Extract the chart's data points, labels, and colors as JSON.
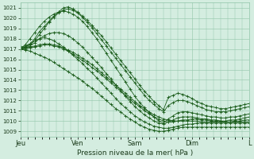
{
  "xlabel": "Pression niveau de la mer( hPa )",
  "ylim": [
    1008.5,
    1021.5
  ],
  "yticks": [
    1009,
    1010,
    1011,
    1012,
    1013,
    1014,
    1015,
    1016,
    1017,
    1018,
    1019,
    1020,
    1021
  ],
  "day_labels": [
    "Jeu",
    "Ven",
    "Sam",
    "Dim",
    "L"
  ],
  "day_positions": [
    0,
    48,
    96,
    144,
    192
  ],
  "line_color": "#1a5c1a",
  "bg_color": "#d4ede0",
  "grid_color": "#90c4a8",
  "total_hours": 192,
  "series": [
    [
      1017.2,
      1017.3,
      1017.5,
      1018.0,
      1018.7,
      1019.2,
      1019.7,
      1020.2,
      1020.6,
      1021.0,
      1021.1,
      1020.9,
      1020.6,
      1020.2,
      1019.8,
      1019.3,
      1018.8,
      1018.3,
      1017.7,
      1017.1,
      1016.5,
      1015.9,
      1015.3,
      1014.7,
      1014.1,
      1013.5,
      1012.9,
      1012.4,
      1011.9,
      1011.5,
      1011.1,
      1012.3,
      1012.5,
      1012.7,
      1012.6,
      1012.4,
      1012.2,
      1011.9,
      1011.7,
      1011.5,
      1011.4,
      1011.3,
      1011.2,
      1011.2,
      1011.3,
      1011.4,
      1011.5,
      1011.6,
      1011.7
    ],
    [
      1017.1,
      1017.2,
      1017.4,
      1017.8,
      1018.4,
      1019.0,
      1019.6,
      1020.1,
      1020.5,
      1020.8,
      1020.9,
      1020.8,
      1020.5,
      1020.1,
      1019.6,
      1019.1,
      1018.5,
      1017.9,
      1017.3,
      1016.7,
      1016.1,
      1015.5,
      1014.9,
      1014.3,
      1013.7,
      1013.1,
      1012.5,
      1012.0,
      1011.6,
      1011.2,
      1010.9,
      1011.5,
      1011.8,
      1012.0,
      1012.0,
      1011.9,
      1011.7,
      1011.5,
      1011.3,
      1011.1,
      1011.0,
      1010.9,
      1010.9,
      1010.9,
      1011.0,
      1011.1,
      1011.2,
      1011.3,
      1011.4
    ],
    [
      1017.0,
      1017.4,
      1018.0,
      1018.6,
      1019.2,
      1019.7,
      1020.1,
      1020.4,
      1020.6,
      1020.7,
      1020.6,
      1020.4,
      1020.1,
      1019.7,
      1019.2,
      1018.6,
      1018.0,
      1017.3,
      1016.6,
      1015.9,
      1015.2,
      1014.5,
      1013.8,
      1013.1,
      1012.4,
      1011.8,
      1011.3,
      1010.8,
      1010.4,
      1010.0,
      1009.8,
      1010.2,
      1010.5,
      1010.8,
      1010.9,
      1010.9,
      1010.8,
      1010.7,
      1010.6,
      1010.5,
      1010.4,
      1010.4,
      1010.3,
      1010.3,
      1010.4,
      1010.4,
      1010.5,
      1010.6,
      1010.7
    ],
    [
      1017.0,
      1017.1,
      1017.3,
      1017.6,
      1018.0,
      1018.3,
      1018.5,
      1018.6,
      1018.6,
      1018.5,
      1018.3,
      1018.0,
      1017.6,
      1017.2,
      1016.7,
      1016.2,
      1015.7,
      1015.2,
      1014.6,
      1014.1,
      1013.5,
      1013.0,
      1012.4,
      1011.9,
      1011.4,
      1011.0,
      1010.6,
      1010.3,
      1010.0,
      1009.8,
      1009.7,
      1009.9,
      1010.1,
      1010.3,
      1010.4,
      1010.4,
      1010.4,
      1010.3,
      1010.2,
      1010.2,
      1010.1,
      1010.1,
      1010.0,
      1010.0,
      1010.1,
      1010.1,
      1010.2,
      1010.3,
      1010.4
    ],
    [
      1017.0,
      1017.0,
      1017.1,
      1017.2,
      1017.3,
      1017.4,
      1017.4,
      1017.3,
      1017.2,
      1017.0,
      1016.8,
      1016.5,
      1016.2,
      1015.9,
      1015.6,
      1015.2,
      1014.9,
      1014.5,
      1014.1,
      1013.7,
      1013.3,
      1012.9,
      1012.5,
      1012.1,
      1011.7,
      1011.4,
      1011.0,
      1010.7,
      1010.4,
      1010.2,
      1010.0,
      1009.9,
      1009.9,
      1010.0,
      1010.1,
      1010.1,
      1010.2,
      1010.2,
      1010.1,
      1010.1,
      1010.0,
      1010.0,
      1010.0,
      1009.9,
      1009.9,
      1010.0,
      1010.0,
      1010.1,
      1010.1
    ],
    [
      1017.0,
      1017.1,
      1017.2,
      1017.3,
      1017.4,
      1017.5,
      1017.5,
      1017.4,
      1017.3,
      1017.1,
      1016.9,
      1016.7,
      1016.4,
      1016.1,
      1015.8,
      1015.5,
      1015.1,
      1014.7,
      1014.3,
      1013.9,
      1013.5,
      1013.1,
      1012.7,
      1012.3,
      1011.9,
      1011.5,
      1011.2,
      1010.9,
      1010.6,
      1010.4,
      1010.2,
      1010.1,
      1010.0,
      1010.0,
      1010.0,
      1010.0,
      1010.0,
      1010.0,
      1009.9,
      1009.9,
      1009.9,
      1009.9,
      1009.9,
      1009.9,
      1009.9,
      1009.9,
      1009.9,
      1009.9,
      1009.9
    ],
    [
      1017.0,
      1016.9,
      1016.8,
      1016.6,
      1016.4,
      1016.2,
      1016.0,
      1015.7,
      1015.4,
      1015.1,
      1014.8,
      1014.5,
      1014.2,
      1013.9,
      1013.5,
      1013.2,
      1012.8,
      1012.4,
      1012.0,
      1011.6,
      1011.2,
      1010.9,
      1010.5,
      1010.2,
      1009.9,
      1009.6,
      1009.4,
      1009.2,
      1009.1,
      1009.0,
      1009.0,
      1009.1,
      1009.2,
      1009.3,
      1009.4,
      1009.4,
      1009.4,
      1009.4,
      1009.4,
      1009.4,
      1009.4,
      1009.4,
      1009.4,
      1009.4,
      1009.4,
      1009.4,
      1009.4,
      1009.4,
      1009.4
    ],
    [
      1017.0,
      1017.2,
      1017.5,
      1017.8,
      1018.0,
      1018.1,
      1018.0,
      1017.8,
      1017.5,
      1017.2,
      1016.8,
      1016.4,
      1016.0,
      1015.6,
      1015.1,
      1014.7,
      1014.2,
      1013.7,
      1013.2,
      1012.7,
      1012.2,
      1011.7,
      1011.3,
      1010.9,
      1010.5,
      1010.2,
      1009.9,
      1009.7,
      1009.5,
      1009.4,
      1009.3,
      1009.3,
      1009.4,
      1009.5,
      1009.6,
      1009.7,
      1009.7,
      1009.8,
      1009.8,
      1009.8,
      1009.8,
      1009.8,
      1009.8,
      1009.8,
      1009.8,
      1009.8,
      1009.8,
      1009.8,
      1009.8
    ]
  ]
}
